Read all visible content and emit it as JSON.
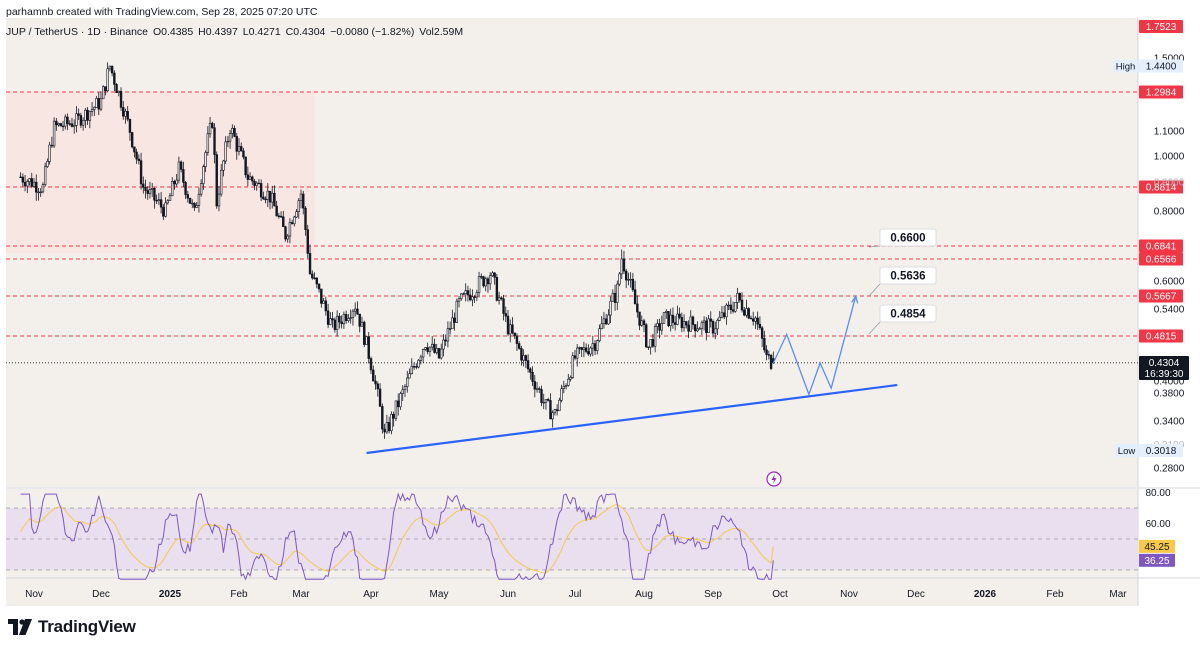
{
  "header": {
    "author_line": "parhamnb created with TradingView.com, Sep 28, 2025 07:20 UTC"
  },
  "symbol_info": {
    "pair": "JUP / TetherUS · 1D · Binance",
    "open": "O0.4385",
    "high": "H0.4397",
    "low": "L0.4271",
    "close": "C0.4304",
    "change": "−0.0080 (−1.82%)",
    "volume": "Vol2.59M"
  },
  "price_axis": {
    "ticks": [
      "1.5000",
      "1.1000",
      "1.0000",
      "0.8000",
      "0.6000",
      "0.5400",
      "0.4000",
      "0.3800",
      "0.3400",
      "0.2800"
    ],
    "faded_ticks": [
      "0.9000",
      "0.3100"
    ],
    "high_label": "High",
    "high_value": "1.4400",
    "low_label": "Low",
    "low_value": "0.3018",
    "current_price": "0.4304",
    "countdown": "16:39:30",
    "top_price": "1.7523"
  },
  "levels": [
    {
      "value": "1.2984"
    },
    {
      "value": "0.8814"
    },
    {
      "value": "0.6841"
    },
    {
      "value": "0.6566"
    },
    {
      "value": "0.5667"
    },
    {
      "value": "0.4815"
    }
  ],
  "targets": [
    {
      "label": "0.6600"
    },
    {
      "label": "0.5636"
    },
    {
      "label": "0.4854"
    }
  ],
  "rsi": {
    "axis_ticks": [
      "80.00",
      "60.00"
    ],
    "ma_value": "45.25",
    "rsi_value": "36.25"
  },
  "time_axis": {
    "labels": [
      "Nov",
      "Dec",
      "2025",
      "Feb",
      "Mar",
      "Apr",
      "May",
      "Jun",
      "Jul",
      "Aug",
      "Sep",
      "Oct",
      "Nov",
      "Dec",
      "2026",
      "Feb",
      "Mar"
    ]
  },
  "branding": {
    "logo_text": "TradingView"
  },
  "colors": {
    "background": "#f3f0ec",
    "candle": "#131722",
    "level_line": "#f23645",
    "trendline": "#2962ff",
    "projection": "#5b8def",
    "rsi_line": "#7e57c2",
    "rsi_ma": "#f7c948",
    "rsi_band": "#e6dcef",
    "supply_zone": "#f7e3e0"
  },
  "chart_data": {
    "type": "candlestick",
    "symbol": "JUP / TetherUS",
    "timeframe": "1D",
    "exchange": "Binance",
    "ohlc_last": {
      "open": 0.4385,
      "high": 0.4397,
      "low": 0.4271,
      "close": 0.4304
    },
    "price_range": [
      0.27,
      1.75
    ],
    "visible_high": 1.44,
    "visible_low": 0.3018,
    "horizontal_levels": [
      1.2984,
      0.8814,
      0.6841,
      0.6566,
      0.5667,
      0.4815
    ],
    "price_path": [
      {
        "date": "2024-10-26",
        "close": 0.92
      },
      {
        "date": "2024-11-05",
        "close": 0.88
      },
      {
        "date": "2024-11-10",
        "close": 1.12
      },
      {
        "date": "2024-11-20",
        "close": 1.15
      },
      {
        "date": "2024-12-01",
        "close": 1.25
      },
      {
        "date": "2024-12-05",
        "close": 1.44
      },
      {
        "date": "2024-12-12",
        "close": 1.18
      },
      {
        "date": "2024-12-20",
        "close": 0.88
      },
      {
        "date": "2024-12-30",
        "close": 0.8
      },
      {
        "date": "2025-01-05",
        "close": 0.95
      },
      {
        "date": "2025-01-12",
        "close": 0.79
      },
      {
        "date": "2025-01-20",
        "close": 1.15
      },
      {
        "date": "2025-01-22",
        "close": 0.83
      },
      {
        "date": "2025-01-28",
        "close": 1.12
      },
      {
        "date": "2025-02-05",
        "close": 0.92
      },
      {
        "date": "2025-02-15",
        "close": 0.85
      },
      {
        "date": "2025-02-22",
        "close": 0.72
      },
      {
        "date": "2025-03-01",
        "close": 0.86
      },
      {
        "date": "2025-03-05",
        "close": 0.62
      },
      {
        "date": "2025-03-15",
        "close": 0.5
      },
      {
        "date": "2025-03-25",
        "close": 0.55
      },
      {
        "date": "2025-04-01",
        "close": 0.43
      },
      {
        "date": "2025-04-07",
        "close": 0.32
      },
      {
        "date": "2025-04-15",
        "close": 0.38
      },
      {
        "date": "2025-04-25",
        "close": 0.47
      },
      {
        "date": "2025-05-01",
        "close": 0.44
      },
      {
        "date": "2025-05-10",
        "close": 0.55
      },
      {
        "date": "2025-05-24",
        "close": 0.62
      },
      {
        "date": "2025-06-01",
        "close": 0.5
      },
      {
        "date": "2025-06-10",
        "close": 0.42
      },
      {
        "date": "2025-06-18",
        "close": 0.36
      },
      {
        "date": "2025-06-22",
        "close": 0.35
      },
      {
        "date": "2025-07-01",
        "close": 0.44
      },
      {
        "date": "2025-07-10",
        "close": 0.47
      },
      {
        "date": "2025-07-20",
        "close": 0.58
      },
      {
        "date": "2025-07-22",
        "close": 0.66
      },
      {
        "date": "2025-07-28",
        "close": 0.55
      },
      {
        "date": "2025-08-03",
        "close": 0.46
      },
      {
        "date": "2025-08-10",
        "close": 0.52
      },
      {
        "date": "2025-08-20",
        "close": 0.51
      },
      {
        "date": "2025-09-01",
        "close": 0.5
      },
      {
        "date": "2025-09-12",
        "close": 0.56
      },
      {
        "date": "2025-09-20",
        "close": 0.52
      },
      {
        "date": "2025-09-25",
        "close": 0.44
      },
      {
        "date": "2025-09-28",
        "close": 0.4304
      }
    ],
    "trendline": [
      {
        "date": "2025-04-07",
        "price": 0.3
      },
      {
        "date": "2025-11-28",
        "price": 0.39
      }
    ],
    "projection_path": [
      {
        "date": "2025-09-28",
        "price": 0.43
      },
      {
        "date": "2025-10-04",
        "price": 0.485
      },
      {
        "date": "2025-10-14",
        "price": 0.378
      },
      {
        "date": "2025-10-19",
        "price": 0.43
      },
      {
        "date": "2025-10-24",
        "price": 0.388
      },
      {
        "date": "2025-11-04",
        "price": 0.566
      }
    ],
    "targets": [
      0.66,
      0.5636,
      0.4854
    ],
    "rsi": {
      "period_visible": true,
      "last_rsi": 36.25,
      "last_ma": 45.25,
      "levels": [
        70,
        30
      ],
      "range": [
        20,
        80
      ]
    }
  }
}
